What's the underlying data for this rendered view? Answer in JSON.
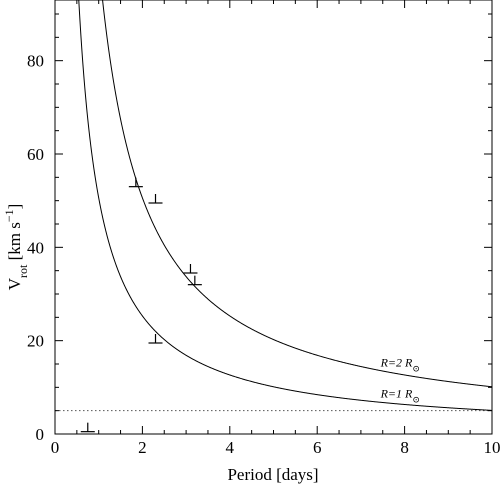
{
  "chart_data": {
    "type": "scatter",
    "xlabel": "Period [days]",
    "ylabel": {
      "main": "V",
      "sub": "rot",
      "unit_open": " [km s",
      "unit_sup": "−1",
      "unit_close": "]"
    },
    "xlim": [
      0,
      10
    ],
    "ylim": [
      0,
      93
    ],
    "x_ticks": [
      0,
      2,
      4,
      6,
      8,
      10
    ],
    "y_ticks": [
      0,
      20,
      40,
      60,
      80
    ],
    "grid": false,
    "upper_limits": [
      {
        "x": 0.75,
        "y": 0.5
      },
      {
        "x": 1.85,
        "y": 53
      },
      {
        "x": 2.3,
        "y": 49.5
      },
      {
        "x": 2.3,
        "y": 19.5
      },
      {
        "x": 3.1,
        "y": 34.5
      },
      {
        "x": 3.2,
        "y": 32
      }
    ],
    "curves": [
      {
        "label": "R=1 R",
        "label_sub": "⊙",
        "radius_rsun": 1,
        "coefficient": 50.6
      },
      {
        "label": "R=2 R",
        "label_sub": "⊙",
        "radius_rsun": 2,
        "coefficient": 101.2
      }
    ],
    "reference_line": {
      "y": 5,
      "style": "dotted"
    }
  }
}
